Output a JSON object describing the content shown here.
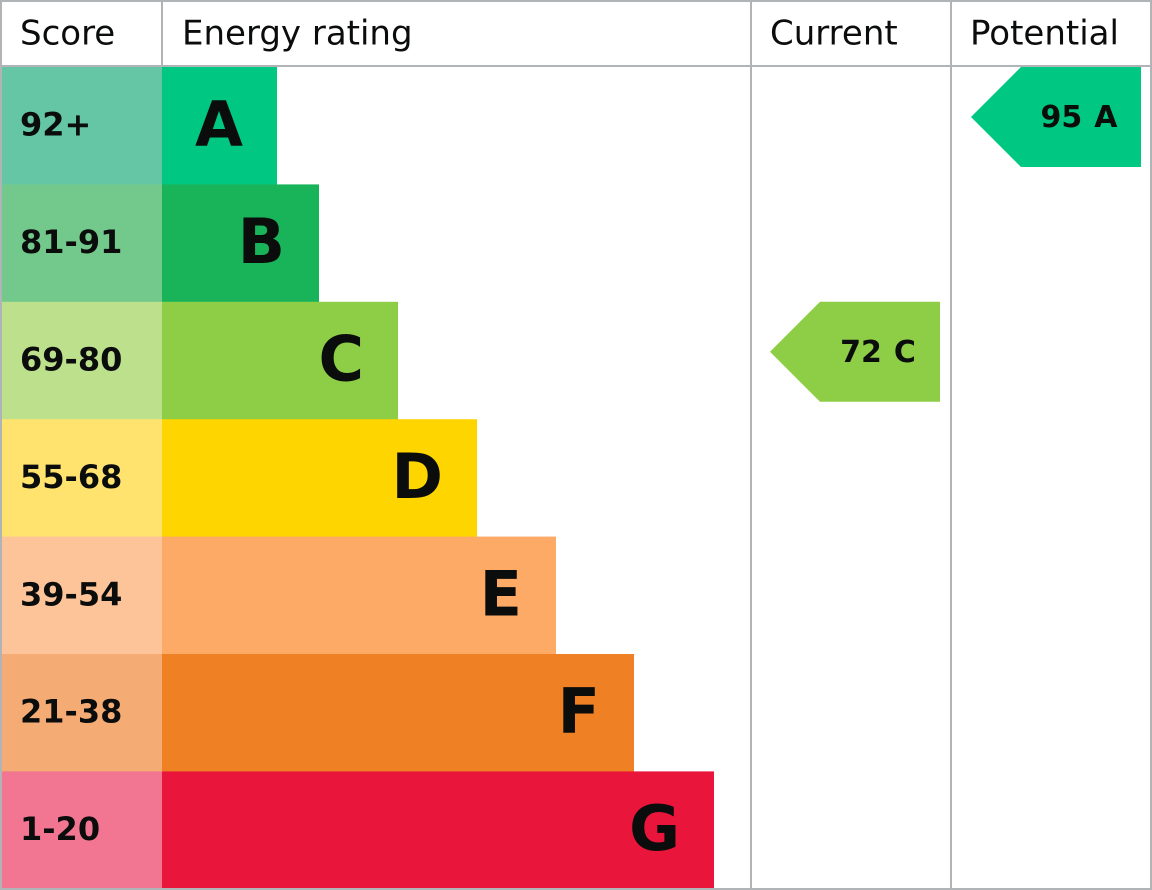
{
  "header": {
    "score": "Score",
    "energy_rating": "Energy rating",
    "current": "Current",
    "potential": "Potential"
  },
  "bands": [
    {
      "score": "92+",
      "letter": "A",
      "color": "#00c781",
      "score_color": "#64c6a4"
    },
    {
      "score": "81-91",
      "letter": "B",
      "color": "#19b459",
      "score_color": "#72c98b"
    },
    {
      "score": "69-80",
      "letter": "C",
      "color": "#8dce46",
      "score_color": "#bce08b"
    },
    {
      "score": "55-68",
      "letter": "D",
      "color": "#ffd500",
      "score_color": "#ffe36e"
    },
    {
      "score": "39-54",
      "letter": "E",
      "color": "#fcaa65",
      "score_color": "#fdc49a"
    },
    {
      "score": "21-38",
      "letter": "F",
      "color": "#ef8023",
      "score_color": "#f4ac74"
    },
    {
      "score": "1-20",
      "letter": "G",
      "color": "#e9153b",
      "score_color": "#f27691"
    }
  ],
  "current": {
    "value": 72,
    "letter": "C"
  },
  "potential": {
    "value": 95,
    "letter": "A"
  }
}
